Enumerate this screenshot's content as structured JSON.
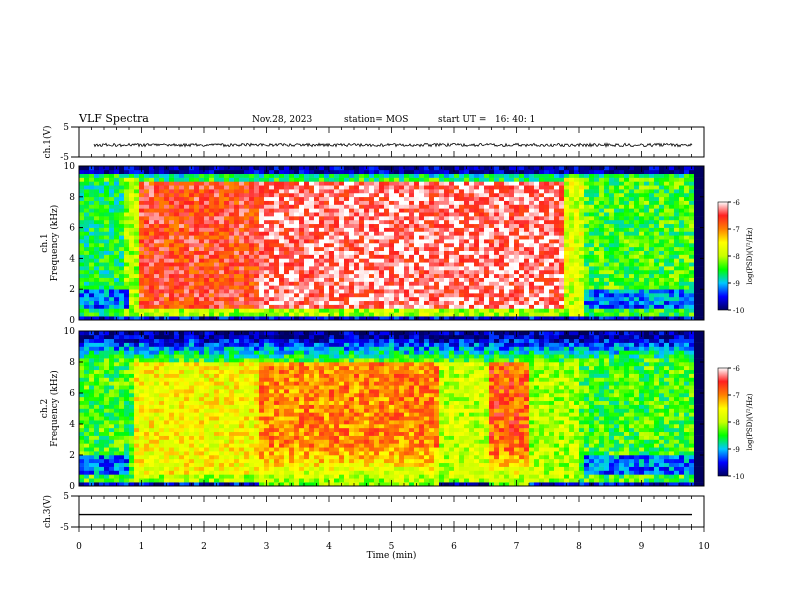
{
  "header": {
    "title": "VLF Spectra",
    "date": "Nov.28, 2023",
    "station": "station= MOS",
    "start": "start UT =   16: 40: 1"
  },
  "chart_data": [
    {
      "type": "line",
      "panel": "ch1-waveform",
      "ylabel": "ch.1(V)",
      "ylim": [
        -5,
        5
      ],
      "yticks": [
        "5",
        "-5"
      ],
      "xlim": [
        0,
        10
      ],
      "series": [
        {
          "values": "noise trace near -1 V from 0.15 to 9.8 min"
        }
      ]
    },
    {
      "type": "heatmap",
      "panel": "ch1-spectrogram",
      "ylabel": "ch.1\nFrequency (kHz)",
      "ylim": [
        0,
        10
      ],
      "yticks": [
        "0",
        "2",
        "4",
        "6",
        "8",
        "10"
      ],
      "xlim": [
        0,
        10
      ],
      "colorbar": {
        "label": "log(PSD)(V²/Hz)",
        "range": [
          -10,
          -6
        ],
        "ticks": [
          "-6",
          "-7",
          "-8",
          "-9",
          "-10"
        ]
      },
      "segments": [
        {
          "t0": 0.0,
          "t1": 0.75,
          "level": -8.6,
          "fmax": 9.0
        },
        {
          "t0": 0.75,
          "t1": 0.95,
          "level": -8.0,
          "fmax": 9.2
        },
        {
          "t0": 0.95,
          "t1": 2.9,
          "level": -6.6,
          "fmax": 8.9
        },
        {
          "t0": 2.9,
          "t1": 7.75,
          "level": -6.3,
          "fmax": 8.9
        },
        {
          "t0": 7.75,
          "t1": 8.1,
          "level": -7.8,
          "fmax": 9.2
        },
        {
          "t0": 8.1,
          "t1": 9.85,
          "level": -8.4,
          "fmax": 9.0
        }
      ]
    },
    {
      "type": "heatmap",
      "panel": "ch2-spectrogram",
      "ylabel": "ch.2\nFrequency (kHz)",
      "ylim": [
        0,
        10
      ],
      "yticks": [
        "0",
        "2",
        "4",
        "6",
        "8",
        "10"
      ],
      "xlim": [
        0,
        10
      ],
      "colorbar": {
        "label": "log(PSD)(V²/Hz)",
        "range": [
          -10,
          -6
        ],
        "ticks": [
          "-6",
          "-7",
          "-8",
          "-9",
          "-10"
        ]
      },
      "segments": [
        {
          "t0": 0.0,
          "t1": 0.9,
          "level": -8.4,
          "fmax": 8.0
        },
        {
          "t0": 0.9,
          "t1": 2.9,
          "level": -7.6,
          "fmax": 8.0
        },
        {
          "t0": 2.9,
          "t1": 5.8,
          "level": -7.0,
          "fmax": 8.0
        },
        {
          "t0": 5.8,
          "t1": 6.6,
          "level": -7.9,
          "fmax": 8.0
        },
        {
          "t0": 6.6,
          "t1": 7.2,
          "level": -6.8,
          "fmax": 8.0
        },
        {
          "t0": 7.2,
          "t1": 8.0,
          "level": -8.0,
          "fmax": 8.0
        },
        {
          "t0": 8.0,
          "t1": 9.85,
          "level": -8.4,
          "fmax": 8.0
        }
      ]
    },
    {
      "type": "line",
      "panel": "ch3-waveform",
      "ylabel": "ch.3(V)",
      "ylim": [
        -5,
        5
      ],
      "yticks": [
        "5",
        "-5"
      ],
      "xlim": [
        0,
        10
      ],
      "series": [
        {
          "values": "flat trace near -1 V from 0 to 9.8 min"
        }
      ]
    }
  ],
  "xaxis": {
    "label": "Time (min)",
    "ticks": [
      "0",
      "1",
      "2",
      "3",
      "4",
      "5",
      "6",
      "7",
      "8",
      "9",
      "10"
    ]
  },
  "colors": {
    "scale": [
      "#000060",
      "#0000ff",
      "#00c8ff",
      "#00ff00",
      "#c8ff00",
      "#ffff00",
      "#ff8000",
      "#ff2020",
      "#ffffff"
    ]
  }
}
